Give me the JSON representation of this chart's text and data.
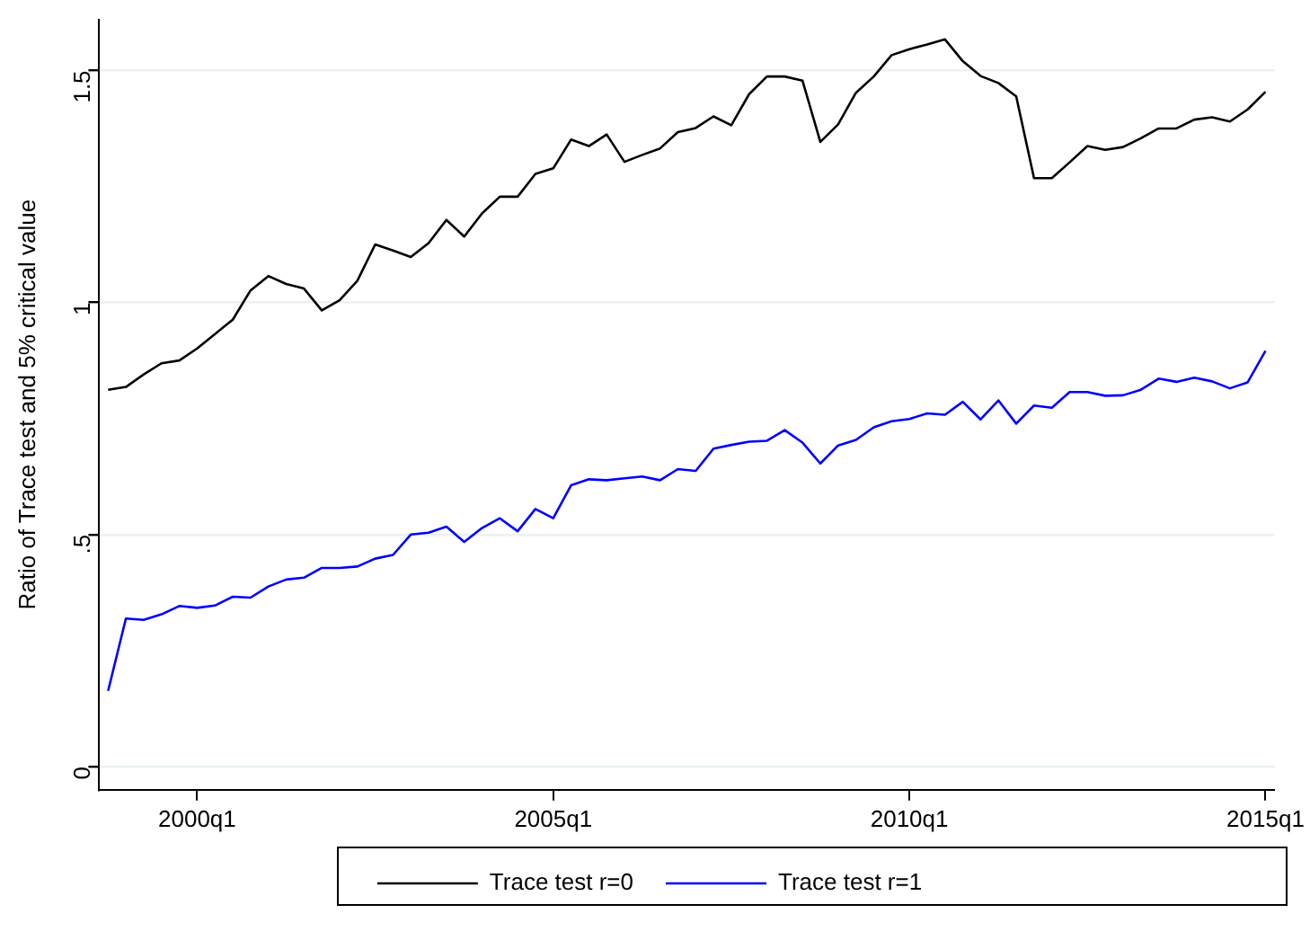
{
  "chart_data": {
    "type": "line",
    "ylabel": "Ratio of Trace test and 5% critical value",
    "categories": [
      null,
      null,
      null,
      null,
      null,
      "2000q1",
      null,
      null,
      null,
      null,
      null,
      null,
      null,
      null,
      null,
      null,
      null,
      null,
      null,
      null,
      null,
      null,
      null,
      null,
      null,
      "2005q1",
      null,
      null,
      null,
      null,
      null,
      null,
      null,
      null,
      null,
      null,
      null,
      null,
      null,
      null,
      null,
      null,
      null,
      null,
      null,
      "2010q1",
      null,
      null,
      null,
      null,
      null,
      null,
      null,
      null,
      null,
      null,
      null,
      null,
      null,
      null,
      null,
      null,
      null,
      null,
      null,
      "2015q1"
    ],
    "series": [
      {
        "name": "Trace test r=0",
        "color": "#000000",
        "values": [
          0.812,
          0.818,
          0.845,
          0.869,
          0.875,
          0.901,
          0.932,
          0.963,
          1.026,
          1.057,
          1.04,
          1.03,
          0.983,
          1.005,
          1.047,
          1.125,
          1.112,
          1.098,
          1.128,
          1.178,
          1.142,
          1.192,
          1.228,
          1.228,
          1.277,
          1.289,
          1.351,
          1.337,
          1.362,
          1.303,
          1.318,
          1.332,
          1.367,
          1.376,
          1.401,
          1.382,
          1.449,
          1.487,
          1.487,
          1.478,
          1.346,
          1.384,
          1.452,
          1.487,
          1.533,
          1.546,
          1.556,
          1.567,
          1.52,
          1.488,
          1.473,
          1.444,
          1.268,
          1.268,
          1.302,
          1.337,
          1.329,
          1.335,
          1.354,
          1.375,
          1.375,
          1.394,
          1.399,
          1.39,
          1.416,
          1.454
        ]
      },
      {
        "name": "Trace test r=1",
        "color": "#0000ff",
        "values": [
          0.163,
          0.319,
          0.316,
          0.328,
          0.346,
          0.342,
          0.347,
          0.366,
          0.364,
          0.388,
          0.403,
          0.407,
          0.428,
          0.428,
          0.431,
          0.448,
          0.456,
          0.5,
          0.504,
          0.517,
          0.484,
          0.514,
          0.535,
          0.507,
          0.555,
          0.535,
          0.606,
          0.619,
          0.617,
          0.621,
          0.625,
          0.617,
          0.641,
          0.637,
          0.685,
          0.693,
          0.7,
          0.702,
          0.725,
          0.698,
          0.653,
          0.692,
          0.704,
          0.731,
          0.744,
          0.749,
          0.761,
          0.758,
          0.786,
          0.748,
          0.789,
          0.739,
          0.778,
          0.773,
          0.807,
          0.807,
          0.799,
          0.8,
          0.812,
          0.836,
          0.829,
          0.838,
          0.83,
          0.815,
          0.828,
          0.896
        ]
      }
    ],
    "ylim": [
      -0.05,
      1.61
    ],
    "yticks": [
      {
        "value": 0,
        "label": "0"
      },
      {
        "value": 0.5,
        "label": ".5"
      },
      {
        "value": 1,
        "label": "1"
      },
      {
        "value": 1.5,
        "label": "1.5"
      }
    ],
    "grid": "y",
    "legend": "bottom",
    "marker": "none",
    "line_style": "solid"
  }
}
